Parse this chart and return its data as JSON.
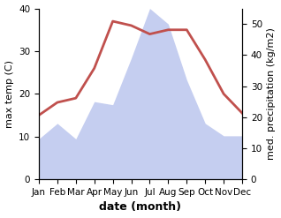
{
  "months": [
    "Jan",
    "Feb",
    "Mar",
    "Apr",
    "May",
    "Jun",
    "Jul",
    "Aug",
    "Sep",
    "Oct",
    "Nov",
    "Dec"
  ],
  "month_indices": [
    0,
    1,
    2,
    3,
    4,
    5,
    6,
    7,
    8,
    9,
    10,
    11
  ],
  "temperature": [
    15,
    18,
    19,
    26,
    37,
    36,
    34,
    35,
    35,
    28,
    20,
    15.5
  ],
  "precipitation_mm": [
    13,
    18,
    13,
    25,
    24,
    39,
    55,
    50,
    32,
    18,
    14,
    14
  ],
  "temp_color": "#c0504d",
  "precip_fill_color": "#c5cef0",
  "temp_ylim": [
    0,
    40
  ],
  "precip_ylim": [
    0,
    55
  ],
  "precip_yticks": [
    0,
    10,
    20,
    30,
    40,
    50
  ],
  "temp_yticks": [
    0,
    10,
    20,
    30,
    40
  ],
  "xlabel": "date (month)",
  "ylabel_left": "max temp (C)",
  "ylabel_right": "med. precipitation (kg/m2)",
  "xlabel_fontsize": 9,
  "ylabel_fontsize": 8,
  "tick_fontsize": 7.5
}
